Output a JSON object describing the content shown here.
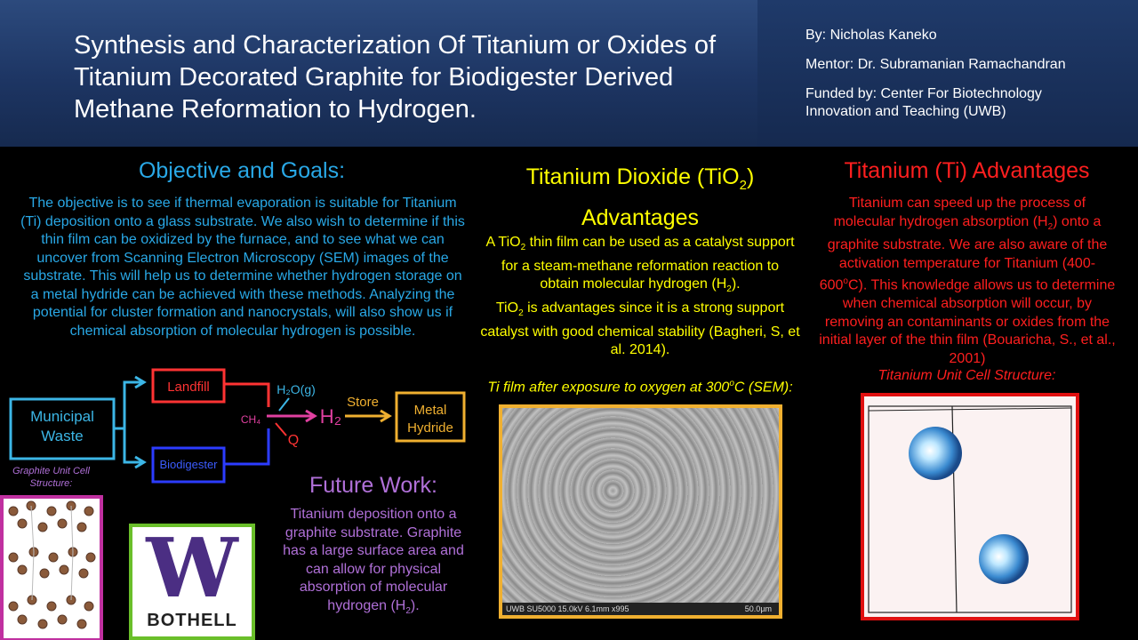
{
  "header": {
    "title": "Synthesis and Characterization Of Titanium or Oxides of Titanium Decorated Graphite for Biodigester Derived Methane Reformation to Hydrogen.",
    "author": "By: Nicholas Kaneko",
    "mentor": "Mentor: Dr. Subramanian Ramachandran",
    "funded": "Funded by: Center For Biotechnology Innovation and Teaching (UWB)"
  },
  "objective": {
    "title": "Objective and Goals:",
    "body": "The objective is to see if thermal evaporation is suitable for Titanium (Ti) deposition onto a glass substrate. We also wish to determine if this thin film can be oxidized by the furnace, and to see what we can uncover from Scanning Electron Microscopy (SEM) images of the substrate. This will help us to determine whether hydrogen storage on a metal hydride can be achieved with these methods. Analyzing the potential for cluster formation and nanocrystals, will also show us if chemical absorption of molecular hydrogen is possible."
  },
  "flow": {
    "municipal": "Municipal",
    "waste": "Waste",
    "landfill": "Landfill",
    "biodigester": "Biodigester",
    "h2o": "H₂O(g)",
    "ch4": "CH₄",
    "q": "Q",
    "h2": "H₂",
    "store": "Store",
    "metal": "Metal",
    "hydride": "Hydride"
  },
  "graphite": {
    "caption": "Graphite Unit Cell Structure:"
  },
  "logo": {
    "letter": "W",
    "word": "BOTHELL"
  },
  "future": {
    "title": "Future Work:",
    "body_main": "Titanium deposition onto a graphite substrate. Graphite has a large surface area and can allow for physical absorption of molecular hydrogen (H",
    "body_sub": "2",
    "body_end": ")."
  },
  "tio2": {
    "title_pre": "Titanium Dioxide (TiO",
    "title_sub": "2",
    "title_post": ")",
    "title_line2": "Advantages",
    "p1a": "A TiO",
    "p1b": "2",
    "p1c": " thin film can be used as a catalyst support for a steam-methane reformation reaction to obtain molecular hydrogen (H",
    "p1d": "2",
    "p1e": ").",
    "p2a": "TiO",
    "p2b": "2",
    "p2c": " is advantages since it is a strong support catalyst with good chemical stability (Bagheri, S, et al. 2014).",
    "caption_a": "Ti film after exposure to oxygen at 300",
    "caption_sup": "o",
    "caption_b": "C (SEM):",
    "sem_label": "UWB SU5000 15.0kV 6.1mm x995",
    "sem_scale": "50.0µm"
  },
  "ti": {
    "title": "Titanium (Ti) Advantages",
    "b1": "Titanium can speed up the process of molecular hydrogen absorption (H",
    "b1sub": "2",
    "b2": ") onto a graphite substrate. We are also aware of the activation temperature for Titanium (400-600",
    "b2sup": "o",
    "b3": "C). This knowledge allows us to determine when chemical absorption will occur, by removing an contaminants or oxides from the initial layer of the thin film (Bouaricha, S., et al., 2001)",
    "caption": "Titanium Unit Cell Structure:"
  },
  "colors": {
    "cyan": "#29a8e6",
    "yellow": "#ffff00",
    "red": "#ff1f1f",
    "purple": "#b070d8",
    "uw_purple": "#4b2e83",
    "logo_border": "#6abf2a"
  }
}
